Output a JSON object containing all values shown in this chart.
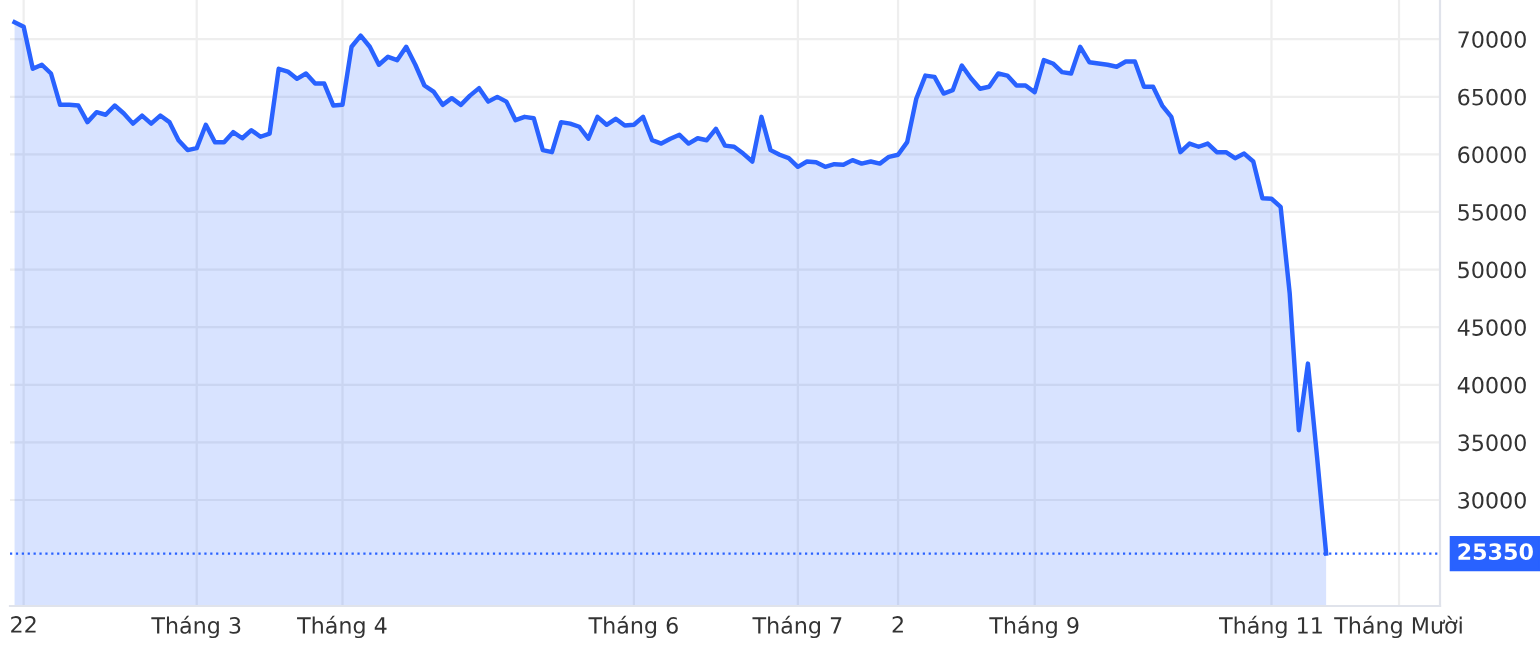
{
  "chart_data": {
    "type": "area",
    "color": "#2962ff",
    "categories": [
      null,
      "22",
      null,
      null,
      null,
      null,
      null,
      null,
      null,
      null,
      null,
      null,
      null,
      null,
      null,
      null,
      null,
      null,
      null,
      null,
      "Tháng 3",
      null,
      null,
      null,
      null,
      null,
      null,
      null,
      null,
      null,
      null,
      null,
      null,
      null,
      null,
      null,
      "Tháng 4",
      null,
      null,
      null,
      null,
      null,
      null,
      null,
      null,
      null,
      null,
      null,
      null,
      null,
      null,
      null,
      null,
      null,
      null,
      null,
      null,
      null,
      null,
      null,
      null,
      null,
      null,
      null,
      null,
      null,
      null,
      null,
      "Tháng 6",
      null,
      null,
      null,
      null,
      null,
      null,
      null,
      null,
      null,
      null,
      null,
      null,
      null,
      null,
      null,
      null,
      null,
      "Tháng 7",
      null,
      null,
      null,
      null,
      null,
      null,
      null,
      null,
      null,
      null,
      "2",
      null,
      null,
      null,
      null,
      null,
      null,
      null,
      null,
      null,
      null,
      null,
      null,
      null,
      null,
      "Tháng 9",
      null,
      null,
      null,
      null,
      null,
      null,
      null,
      null,
      null,
      null,
      null,
      null,
      null,
      null,
      null,
      null,
      null,
      null,
      null,
      null,
      null,
      null,
      null,
      null,
      null,
      "Tháng 11",
      null,
      null,
      null,
      null,
      null,
      null,
      null,
      null,
      null,
      null,
      null,
      null,
      null,
      "Tháng Mười",
      null,
      null,
      null,
      null
    ],
    "values": [
      71476,
      71076,
      67430,
      67780,
      67020,
      64300,
      64300,
      64240,
      62800,
      63660,
      63440,
      64240,
      63550,
      62670,
      63370,
      62670,
      63370,
      62800,
      61230,
      60370,
      60540,
      62570,
      61060,
      61060,
      61930,
      61400,
      62100,
      61530,
      61800,
      67430,
      67190,
      66560,
      67020,
      66150,
      66150,
      64240,
      64300,
      69340,
      70310,
      69340,
      67780,
      68470,
      68180,
      69340,
      67780,
      65980,
      65450,
      64300,
      64880,
      64300,
      65100,
      65750,
      64580,
      64990,
      64580,
      62970,
      63260,
      63140,
      60370,
      60190,
      62800,
      62670,
      62400,
      61360,
      63260,
      62570,
      63090,
      62500,
      62570,
      63260,
      61230,
      60940,
      61360,
      61700,
      60940,
      61400,
      61230,
      62220,
      60760,
      60660,
      60070,
      59380,
      63260,
      60370,
      59970,
      59670,
      58920,
      59380,
      59320,
      58920,
      59150,
      59100,
      59500,
      59200,
      59380,
      59200,
      59790,
      59970,
      61060,
      64830,
      66840,
      66730,
      65280,
      65570,
      67710,
      66610,
      65700,
      65870,
      67020,
      66840,
      65980,
      65980,
      65400,
      68180,
      67890,
      67140,
      67020,
      69340,
      68000,
      67890,
      67780,
      67610,
      68060,
      68060,
      65870,
      65870,
      64240,
      63260,
      60190,
      60940,
      60660,
      60940,
      60190,
      60190,
      59670,
      60070,
      59380,
      56200,
      56150,
      55450,
      47920,
      36060,
      41840,
      33750,
      25350,
      null,
      null,
      null,
      null,
      null,
      null,
      null,
      null,
      null,
      null,
      null,
      null
    ],
    "ylim": [
      20800,
      73400
    ],
    "yticks": [
      30000,
      35000,
      40000,
      45000,
      50000,
      55000,
      60000,
      65000,
      70000
    ],
    "grid": true,
    "ref_lines": [
      {
        "axis": "y",
        "value": 25350,
        "label": "25350",
        "color": "#2962ff",
        "line_style": "dotted"
      }
    ]
  }
}
